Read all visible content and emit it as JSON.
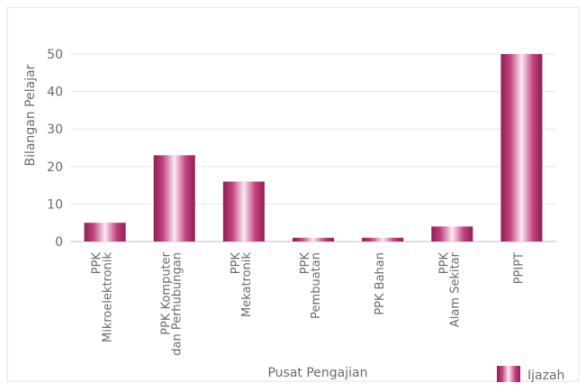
{
  "chart_data": {
    "type": "bar",
    "title": "",
    "xlabel": "Pusat Pengajian",
    "ylabel": "Bilangan Pelajar",
    "ylim": [
      0,
      50
    ],
    "yticks": [
      "0",
      "10",
      "20",
      "30",
      "40",
      "50"
    ],
    "grid": true,
    "legend": "bottom-right",
    "categories": [
      [
        "PPK",
        "Mikroelektronik"
      ],
      [
        "PPK Komputer",
        "dan Perhubungan"
      ],
      [
        "PPK",
        "Mekatronik"
      ],
      [
        "PPK",
        "Pembuatan"
      ],
      [
        "PPK Bahan"
      ],
      [
        "PPK",
        "Alam Sekitar"
      ],
      [
        "PPIPT"
      ]
    ],
    "series": [
      {
        "name": "Ijazah",
        "color": "#b0306f",
        "values": [
          5,
          23,
          16,
          1,
          1,
          4,
          50
        ]
      }
    ]
  }
}
